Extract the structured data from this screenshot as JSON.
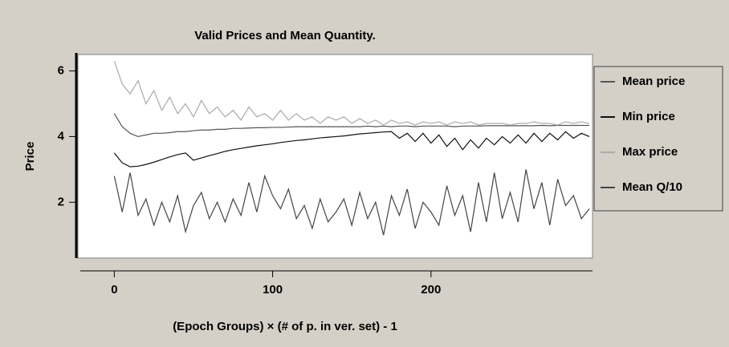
{
  "chart_data": {
    "type": "line",
    "title": "Valid Prices and Mean Quantity.",
    "x_label": "(Epoch Groups) × (# of p. in ver. set) - 1",
    "y_label": "Price",
    "x": [
      0,
      5,
      10,
      15,
      20,
      25,
      30,
      35,
      40,
      45,
      50,
      55,
      60,
      65,
      70,
      75,
      80,
      85,
      90,
      95,
      100,
      105,
      110,
      115,
      120,
      125,
      130,
      135,
      140,
      145,
      150,
      155,
      160,
      165,
      170,
      175,
      180,
      185,
      190,
      195,
      200,
      205,
      210,
      215,
      220,
      225,
      230,
      235,
      240,
      245,
      250,
      255,
      260,
      265,
      270,
      275,
      280,
      285,
      290,
      295,
      300
    ],
    "series": [
      {
        "name": "Mean price",
        "color": "#555555",
        "values": [
          4.7,
          4.3,
          4.1,
          4.0,
          4.05,
          4.1,
          4.1,
          4.12,
          4.15,
          4.15,
          4.18,
          4.2,
          4.2,
          4.22,
          4.22,
          4.25,
          4.25,
          4.26,
          4.27,
          4.27,
          4.28,
          4.28,
          4.29,
          4.3,
          4.3,
          4.3,
          4.3,
          4.3,
          4.3,
          4.3,
          4.3,
          4.3,
          4.32,
          4.3,
          4.32,
          4.3,
          4.32,
          4.32,
          4.3,
          4.32,
          4.32,
          4.32,
          4.32,
          4.3,
          4.32,
          4.32,
          4.32,
          4.33,
          4.33,
          4.33,
          4.33,
          4.33,
          4.33,
          4.33,
          4.34,
          4.33,
          4.34,
          4.34,
          4.34,
          4.34,
          4.34
        ]
      },
      {
        "name": "Min price",
        "color": "#111111",
        "values": [
          3.5,
          3.2,
          3.08,
          3.1,
          3.15,
          3.22,
          3.3,
          3.38,
          3.45,
          3.5,
          3.28,
          3.35,
          3.42,
          3.48,
          3.55,
          3.6,
          3.64,
          3.68,
          3.72,
          3.75,
          3.78,
          3.82,
          3.85,
          3.88,
          3.9,
          3.93,
          3.96,
          3.98,
          4.0,
          4.02,
          4.05,
          4.08,
          4.1,
          4.12,
          4.14,
          4.15,
          3.95,
          4.1,
          3.85,
          4.1,
          3.8,
          4.05,
          3.7,
          3.95,
          3.6,
          3.9,
          3.65,
          3.95,
          3.75,
          4.0,
          3.8,
          4.05,
          3.8,
          4.1,
          3.85,
          4.1,
          3.9,
          4.15,
          3.95,
          4.1,
          4.0
        ]
      },
      {
        "name": "Max price",
        "color": "#aaaaaa",
        "values": [
          6.3,
          5.6,
          5.3,
          5.7,
          5.0,
          5.4,
          4.8,
          5.2,
          4.7,
          5.0,
          4.6,
          5.1,
          4.7,
          4.9,
          4.6,
          4.8,
          4.5,
          4.9,
          4.6,
          4.7,
          4.5,
          4.8,
          4.5,
          4.7,
          4.5,
          4.6,
          4.4,
          4.6,
          4.5,
          4.6,
          4.4,
          4.55,
          4.4,
          4.5,
          4.35,
          4.5,
          4.4,
          4.45,
          4.35,
          4.45,
          4.4,
          4.45,
          4.35,
          4.45,
          4.4,
          4.45,
          4.35,
          4.4,
          4.4,
          4.4,
          4.35,
          4.4,
          4.4,
          4.45,
          4.4,
          4.4,
          4.35,
          4.45,
          4.4,
          4.45,
          4.4
        ]
      },
      {
        "name": "Mean Q/10",
        "color": "#444444",
        "values": [
          2.8,
          1.7,
          2.9,
          1.6,
          2.1,
          1.3,
          2.0,
          1.4,
          2.2,
          1.1,
          1.9,
          2.3,
          1.5,
          2.0,
          1.4,
          2.1,
          1.6,
          2.6,
          1.7,
          2.8,
          2.2,
          1.8,
          2.4,
          1.5,
          1.9,
          1.2,
          2.1,
          1.4,
          1.7,
          2.1,
          1.3,
          2.3,
          1.5,
          2.0,
          1.0,
          2.2,
          1.6,
          2.4,
          1.2,
          2.0,
          1.7,
          1.3,
          2.5,
          1.6,
          2.2,
          1.1,
          2.6,
          1.4,
          2.9,
          1.5,
          2.3,
          1.4,
          3.0,
          1.8,
          2.6,
          1.3,
          2.7,
          1.9,
          2.2,
          1.5,
          1.8
        ]
      }
    ],
    "xlim": [
      -23,
      302
    ],
    "ylim": [
      0.3,
      6.5
    ],
    "xticks": [
      0,
      100,
      200
    ],
    "yticks": [
      2,
      4,
      6
    ],
    "legend": "right"
  }
}
